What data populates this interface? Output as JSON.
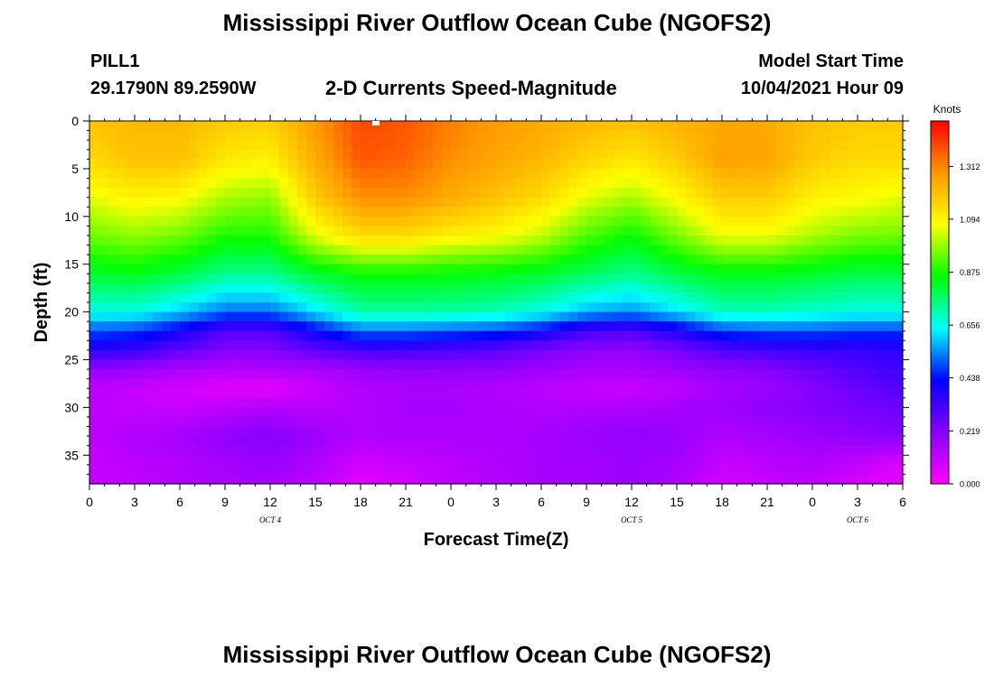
{
  "title": "Mississippi River Outflow Ocean Cube (NGOFS2)",
  "footer_title": "Mississippi River Outflow Ocean Cube (NGOFS2)",
  "station": {
    "id": "PILL1",
    "coords": "29.1790N  89.2590W"
  },
  "subtitle": "2-D Currents Speed-Magnitude",
  "model_start": {
    "label": "Model Start Time",
    "value": "10/04/2021 Hour 09"
  },
  "chart_data": {
    "type": "heatmap",
    "title": "2-D Currents Speed-Magnitude",
    "xlabel": "Forecast Time(Z)",
    "ylabel": "Depth (ft)",
    "x_tick_labels": [
      "0",
      "3",
      "6",
      "9",
      "12",
      "15",
      "18",
      "21",
      "0",
      "3",
      "6",
      "9",
      "12",
      "15",
      "18",
      "21",
      "0",
      "3",
      "6"
    ],
    "x_range_hours": [
      0,
      54
    ],
    "date_labels": [
      {
        "label": "OCT 4",
        "hour": 12
      },
      {
        "label": "OCT 5",
        "hour": 36
      },
      {
        "label": "OCT 6",
        "hour": 51
      }
    ],
    "y_ticks": [
      0,
      5,
      10,
      15,
      20,
      25,
      30,
      35
    ],
    "ylim": [
      0,
      38
    ],
    "y_inverted": true,
    "colorbar": {
      "units": "Knots",
      "tick_labels": [
        "1.312",
        "1.094",
        "0.875",
        "0.656",
        "0.438",
        "0.219",
        "0.000"
      ],
      "tick_values": [
        1.312,
        1.094,
        0.875,
        0.656,
        0.438,
        0.219,
        0.0
      ],
      "range": [
        0,
        1.5
      ],
      "colors": [
        "#ff00ff",
        "#8800ff",
        "#0000ff",
        "#00ffff",
        "#00ff00",
        "#ffff00",
        "#ff9900",
        "#ff0000"
      ]
    },
    "depths_ft": [
      0,
      4,
      8,
      12,
      16,
      20,
      22,
      24,
      26,
      28,
      30,
      33,
      36,
      38
    ],
    "times_h": [
      0,
      3,
      6,
      9,
      12,
      15,
      18,
      21,
      24,
      27,
      30,
      33,
      36,
      39,
      42,
      45,
      48,
      51,
      54
    ],
    "speed_knots": [
      [
        1.2,
        1.22,
        1.22,
        1.18,
        1.17,
        1.28,
        1.4,
        1.38,
        1.32,
        1.28,
        1.25,
        1.22,
        1.2,
        1.23,
        1.26,
        1.25,
        1.2,
        1.18,
        1.18
      ],
      [
        1.15,
        1.2,
        1.2,
        1.12,
        1.1,
        1.25,
        1.38,
        1.36,
        1.3,
        1.26,
        1.22,
        1.16,
        1.12,
        1.18,
        1.27,
        1.26,
        1.18,
        1.15,
        1.15
      ],
      [
        1.05,
        1.1,
        1.08,
        1.0,
        0.98,
        1.18,
        1.3,
        1.3,
        1.25,
        1.2,
        1.15,
        1.05,
        1.0,
        1.08,
        1.18,
        1.18,
        1.1,
        1.08,
        1.05
      ],
      [
        0.95,
        0.98,
        0.95,
        0.88,
        0.88,
        1.05,
        1.15,
        1.15,
        1.1,
        1.08,
        1.02,
        0.92,
        0.86,
        0.96,
        1.06,
        1.06,
        1.0,
        0.96,
        0.95
      ],
      [
        0.82,
        0.84,
        0.8,
        0.74,
        0.74,
        0.82,
        0.86,
        0.86,
        0.85,
        0.84,
        0.82,
        0.78,
        0.74,
        0.8,
        0.84,
        0.84,
        0.82,
        0.8,
        0.8
      ],
      [
        0.66,
        0.66,
        0.6,
        0.52,
        0.52,
        0.62,
        0.72,
        0.72,
        0.72,
        0.7,
        0.66,
        0.58,
        0.55,
        0.62,
        0.7,
        0.7,
        0.68,
        0.66,
        0.66
      ],
      [
        0.5,
        0.48,
        0.4,
        0.3,
        0.3,
        0.42,
        0.52,
        0.52,
        0.5,
        0.48,
        0.42,
        0.32,
        0.3,
        0.38,
        0.48,
        0.5,
        0.5,
        0.48,
        0.48
      ],
      [
        0.36,
        0.34,
        0.28,
        0.22,
        0.22,
        0.28,
        0.32,
        0.32,
        0.3,
        0.28,
        0.24,
        0.2,
        0.2,
        0.24,
        0.3,
        0.32,
        0.34,
        0.34,
        0.36
      ],
      [
        0.2,
        0.18,
        0.15,
        0.14,
        0.15,
        0.15,
        0.18,
        0.2,
        0.2,
        0.2,
        0.18,
        0.16,
        0.16,
        0.18,
        0.2,
        0.22,
        0.26,
        0.3,
        0.34
      ],
      [
        0.12,
        0.1,
        0.08,
        0.05,
        0.04,
        0.1,
        0.14,
        0.15,
        0.15,
        0.14,
        0.12,
        0.1,
        0.09,
        0.12,
        0.16,
        0.18,
        0.22,
        0.26,
        0.3
      ],
      [
        0.12,
        0.11,
        0.1,
        0.12,
        0.14,
        0.12,
        0.14,
        0.16,
        0.16,
        0.15,
        0.14,
        0.14,
        0.15,
        0.16,
        0.18,
        0.2,
        0.22,
        0.24,
        0.26
      ],
      [
        0.12,
        0.14,
        0.16,
        0.2,
        0.22,
        0.18,
        0.14,
        0.15,
        0.15,
        0.15,
        0.16,
        0.18,
        0.2,
        0.18,
        0.14,
        0.16,
        0.18,
        0.2,
        0.22
      ],
      [
        0.1,
        0.12,
        0.14,
        0.16,
        0.18,
        0.14,
        0.08,
        0.1,
        0.12,
        0.14,
        0.16,
        0.16,
        0.18,
        0.16,
        0.1,
        0.12,
        0.14,
        0.1,
        0.06
      ],
      [
        0.1,
        0.12,
        0.14,
        0.15,
        0.16,
        0.12,
        0.05,
        0.08,
        0.12,
        0.14,
        0.16,
        0.16,
        0.18,
        0.15,
        0.08,
        0.1,
        0.12,
        0.08,
        0.04
      ]
    ]
  }
}
